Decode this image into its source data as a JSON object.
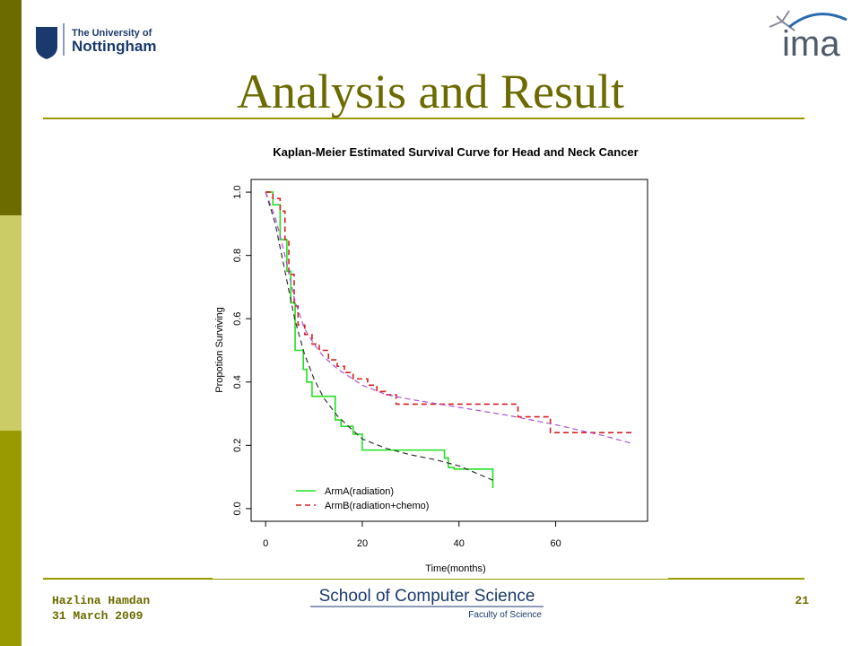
{
  "slide": {
    "title": "Analysis and Result",
    "university_line1": "The University of",
    "university_line2": "Nottingham",
    "logo_right": "ima",
    "author": "Hazlina Hamdan",
    "date": "31 March 2009",
    "page": "21",
    "school": "School of Computer Science",
    "faculty": "Faculty of Science"
  },
  "chart_data": {
    "type": "step-line",
    "title": "Kaplan-Meier Estimated  Survival Curve for Head and Neck Cancer",
    "x_label": "Time(months)",
    "y_label": "Propotion Surviving",
    "xlim": [
      -3,
      79
    ],
    "ylim": [
      -0.04,
      1.04
    ],
    "xticks": [
      0,
      20,
      40,
      60
    ],
    "yticks": [
      {
        "value": 0,
        "label": "0.0"
      },
      0.2,
      0.4,
      0.6,
      0.8,
      {
        "value": 1,
        "label": "1.0"
      }
    ],
    "legend": "bottomleft",
    "series": [
      {
        "name": "ArmA(radiation)",
        "color": "#22e022",
        "style": "solid",
        "shape": "step",
        "x": [
          0,
          1.5,
          3,
          4.4,
          5.2,
          6.1,
          7.8,
          8.5,
          9.6,
          14.4,
          15.6,
          18.1,
          20,
          37,
          37.8,
          39,
          47
        ],
        "values": [
          1,
          0.96,
          0.85,
          0.75,
          0.65,
          0.5,
          0.44,
          0.4,
          0.355,
          0.28,
          0.26,
          0.235,
          0.185,
          0.16,
          0.13,
          0.125,
          0.065
        ]
      },
      {
        "name": "ArmB(radiation+chemo)",
        "color": "#d42020",
        "style": "dashed",
        "shape": "step",
        "x": [
          0,
          1.5,
          3,
          4,
          4.8,
          5.9,
          6.7,
          8.1,
          9.6,
          11.1,
          13,
          14.8,
          16.3,
          18.1,
          21.1,
          23,
          24.8,
          27,
          52.2,
          58.9,
          76.3
        ],
        "values": [
          1,
          0.98,
          0.94,
          0.85,
          0.74,
          0.64,
          0.58,
          0.55,
          0.52,
          0.5,
          0.47,
          0.45,
          0.43,
          0.41,
          0.39,
          0.37,
          0.36,
          0.33,
          0.29,
          0.24,
          0.24
        ]
      },
      {
        "color": "#333333",
        "style": "dashed",
        "shape": "smooth",
        "x": [
          0,
          2,
          4,
          6,
          8,
          10,
          12,
          15,
          20,
          25,
          30,
          35,
          40,
          47
        ],
        "values": [
          1,
          0.9,
          0.75,
          0.6,
          0.49,
          0.41,
          0.35,
          0.29,
          0.22,
          0.19,
          0.17,
          0.155,
          0.135,
          0.09
        ]
      },
      {
        "color": "#b050d0",
        "style": "dashed",
        "shape": "smooth",
        "x": [
          0,
          2,
          4,
          6,
          8,
          10,
          12,
          15,
          20,
          25,
          30,
          40,
          50,
          60,
          70,
          76
        ],
        "values": [
          1,
          0.92,
          0.8,
          0.66,
          0.57,
          0.52,
          0.48,
          0.44,
          0.39,
          0.36,
          0.345,
          0.32,
          0.295,
          0.265,
          0.23,
          0.205
        ]
      }
    ]
  }
}
